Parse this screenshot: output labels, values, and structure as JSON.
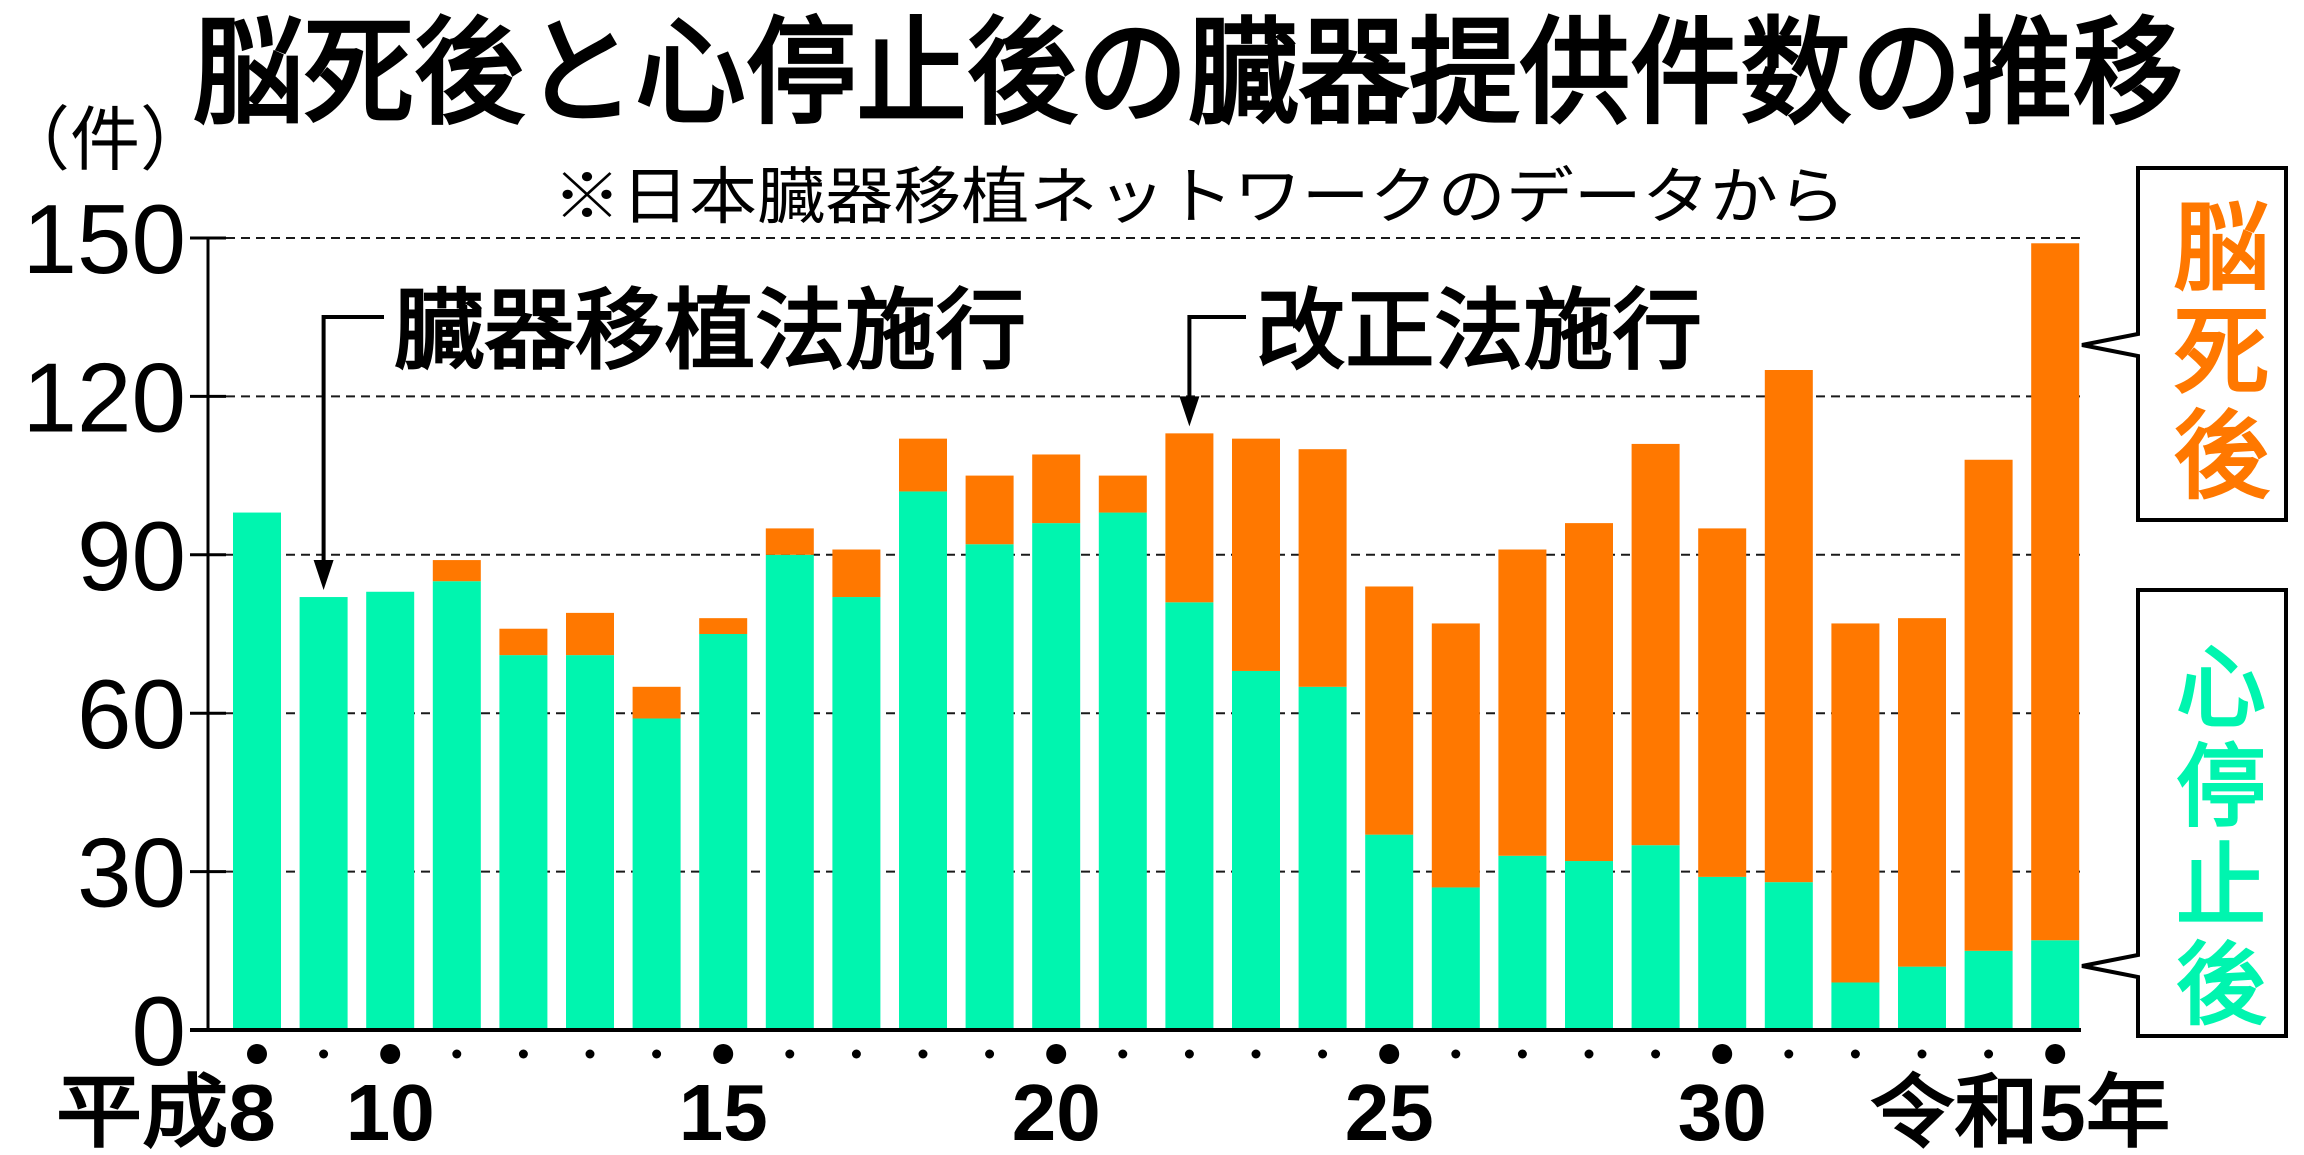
{
  "colors": {
    "background": "#FFFFFF",
    "text": "#000000"
  },
  "chart_data": {
    "type": "bar",
    "stacked": true,
    "title": "脳死後と心停止後の臓器提供件数の推移",
    "subtitle": "※日本臓器移植ネットワークのデータから",
    "xlabel": "",
    "ylabel": "（件）",
    "ylim": [
      0,
      150
    ],
    "yticks": [
      0,
      30,
      60,
      90,
      120,
      150
    ],
    "grid": true,
    "legend_position": "right",
    "categories": [
      "平成8",
      "",
      "10",
      "",
      "",
      "",
      "",
      "15",
      "",
      "",
      "",
      "",
      "20",
      "",
      "",
      "",
      "",
      "25",
      "",
      "",
      "",
      "",
      "30",
      "",
      "",
      "",
      "",
      "令和5年"
    ],
    "series": [
      {
        "name": "心停止後",
        "color": "#00F5AF",
        "values": [
          98,
          82,
          83,
          85,
          71,
          71,
          59,
          75,
          90,
          82,
          102,
          92,
          96,
          98,
          81,
          68,
          65,
          37,
          27,
          33,
          32,
          35,
          29,
          28,
          9,
          12,
          15,
          17
        ]
      },
      {
        "name": "脳死後",
        "color": "#FF7800",
        "values": [
          0,
          0,
          0,
          4,
          5,
          8,
          6,
          3,
          5,
          9,
          10,
          13,
          13,
          7,
          32,
          44,
          45,
          47,
          50,
          58,
          64,
          76,
          66,
          97,
          68,
          66,
          93,
          132
        ]
      }
    ],
    "annotations": [
      {
        "text": "臓器移植法施行"
      },
      {
        "text": "改正法施行"
      }
    ]
  }
}
